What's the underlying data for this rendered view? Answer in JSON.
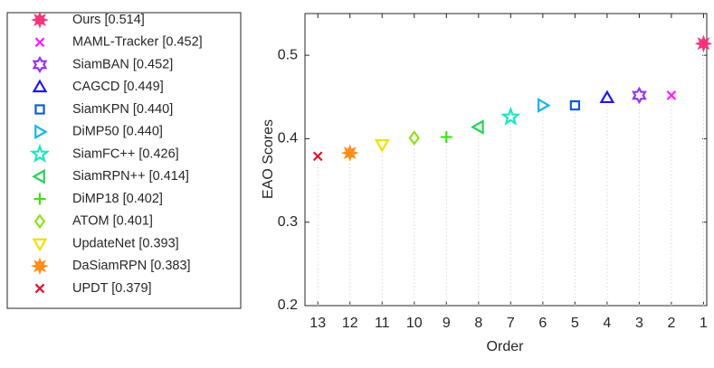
{
  "chart_data": {
    "type": "scatter",
    "xlabel": "Order",
    "ylabel": "EAO Scores",
    "xlim": [
      13.4,
      0.9
    ],
    "xticks": [
      13,
      12,
      11,
      10,
      9,
      8,
      7,
      6,
      5,
      4,
      3,
      2,
      1
    ],
    "ylim": [
      0.2,
      0.55
    ],
    "yticks": [
      0.2,
      0.3,
      0.4,
      0.5
    ],
    "stems": true,
    "series": [
      {
        "name": "Ours [0.514]",
        "color": "#f5337a",
        "marker": "asterisk",
        "x": [
          1
        ],
        "values": [
          0.514
        ]
      },
      {
        "name": "MAML-Tracker [0.452]",
        "color": "#ff1aff",
        "marker": "x",
        "x": [
          2
        ],
        "values": [
          0.452
        ]
      },
      {
        "name": "SiamBAN [0.452]",
        "color": "#9933ee",
        "marker": "hexagram",
        "x": [
          3
        ],
        "values": [
          0.452
        ]
      },
      {
        "name": "CAGCD [0.449]",
        "color": "#1a1aee",
        "marker": "triangle-up",
        "x": [
          4
        ],
        "values": [
          0.449
        ]
      },
      {
        "name": "SiamKPN [0.440]",
        "color": "#0d5bd6",
        "marker": "square",
        "x": [
          5
        ],
        "values": [
          0.44
        ]
      },
      {
        "name": "DiMP50 [0.440]",
        "color": "#1ab2f0",
        "marker": "triangle-right",
        "x": [
          6
        ],
        "values": [
          0.44
        ]
      },
      {
        "name": "SiamFC++ [0.426]",
        "color": "#1ae6c2",
        "marker": "pentagram",
        "x": [
          7
        ],
        "values": [
          0.426
        ]
      },
      {
        "name": "SiamRPN++ [0.414]",
        "color": "#22d452",
        "marker": "triangle-left",
        "x": [
          8
        ],
        "values": [
          0.414
        ]
      },
      {
        "name": "DiMP18 [0.402]",
        "color": "#3ee01a",
        "marker": "plus",
        "x": [
          9
        ],
        "values": [
          0.402
        ]
      },
      {
        "name": "ATOM [0.401]",
        "color": "#8fe01a",
        "marker": "diamond",
        "x": [
          10
        ],
        "values": [
          0.401
        ]
      },
      {
        "name": "UpdateNet [0.393]",
        "color": "#f0e000",
        "marker": "triangle-down",
        "x": [
          11
        ],
        "values": [
          0.393
        ]
      },
      {
        "name": "DaSiamRPN [0.383]",
        "color": "#ff8c1a",
        "marker": "asterisk",
        "x": [
          12
        ],
        "values": [
          0.383
        ]
      },
      {
        "name": "UPDT [0.379]",
        "color": "#e3132e",
        "marker": "x",
        "x": [
          13
        ],
        "values": [
          0.379
        ]
      }
    ]
  }
}
